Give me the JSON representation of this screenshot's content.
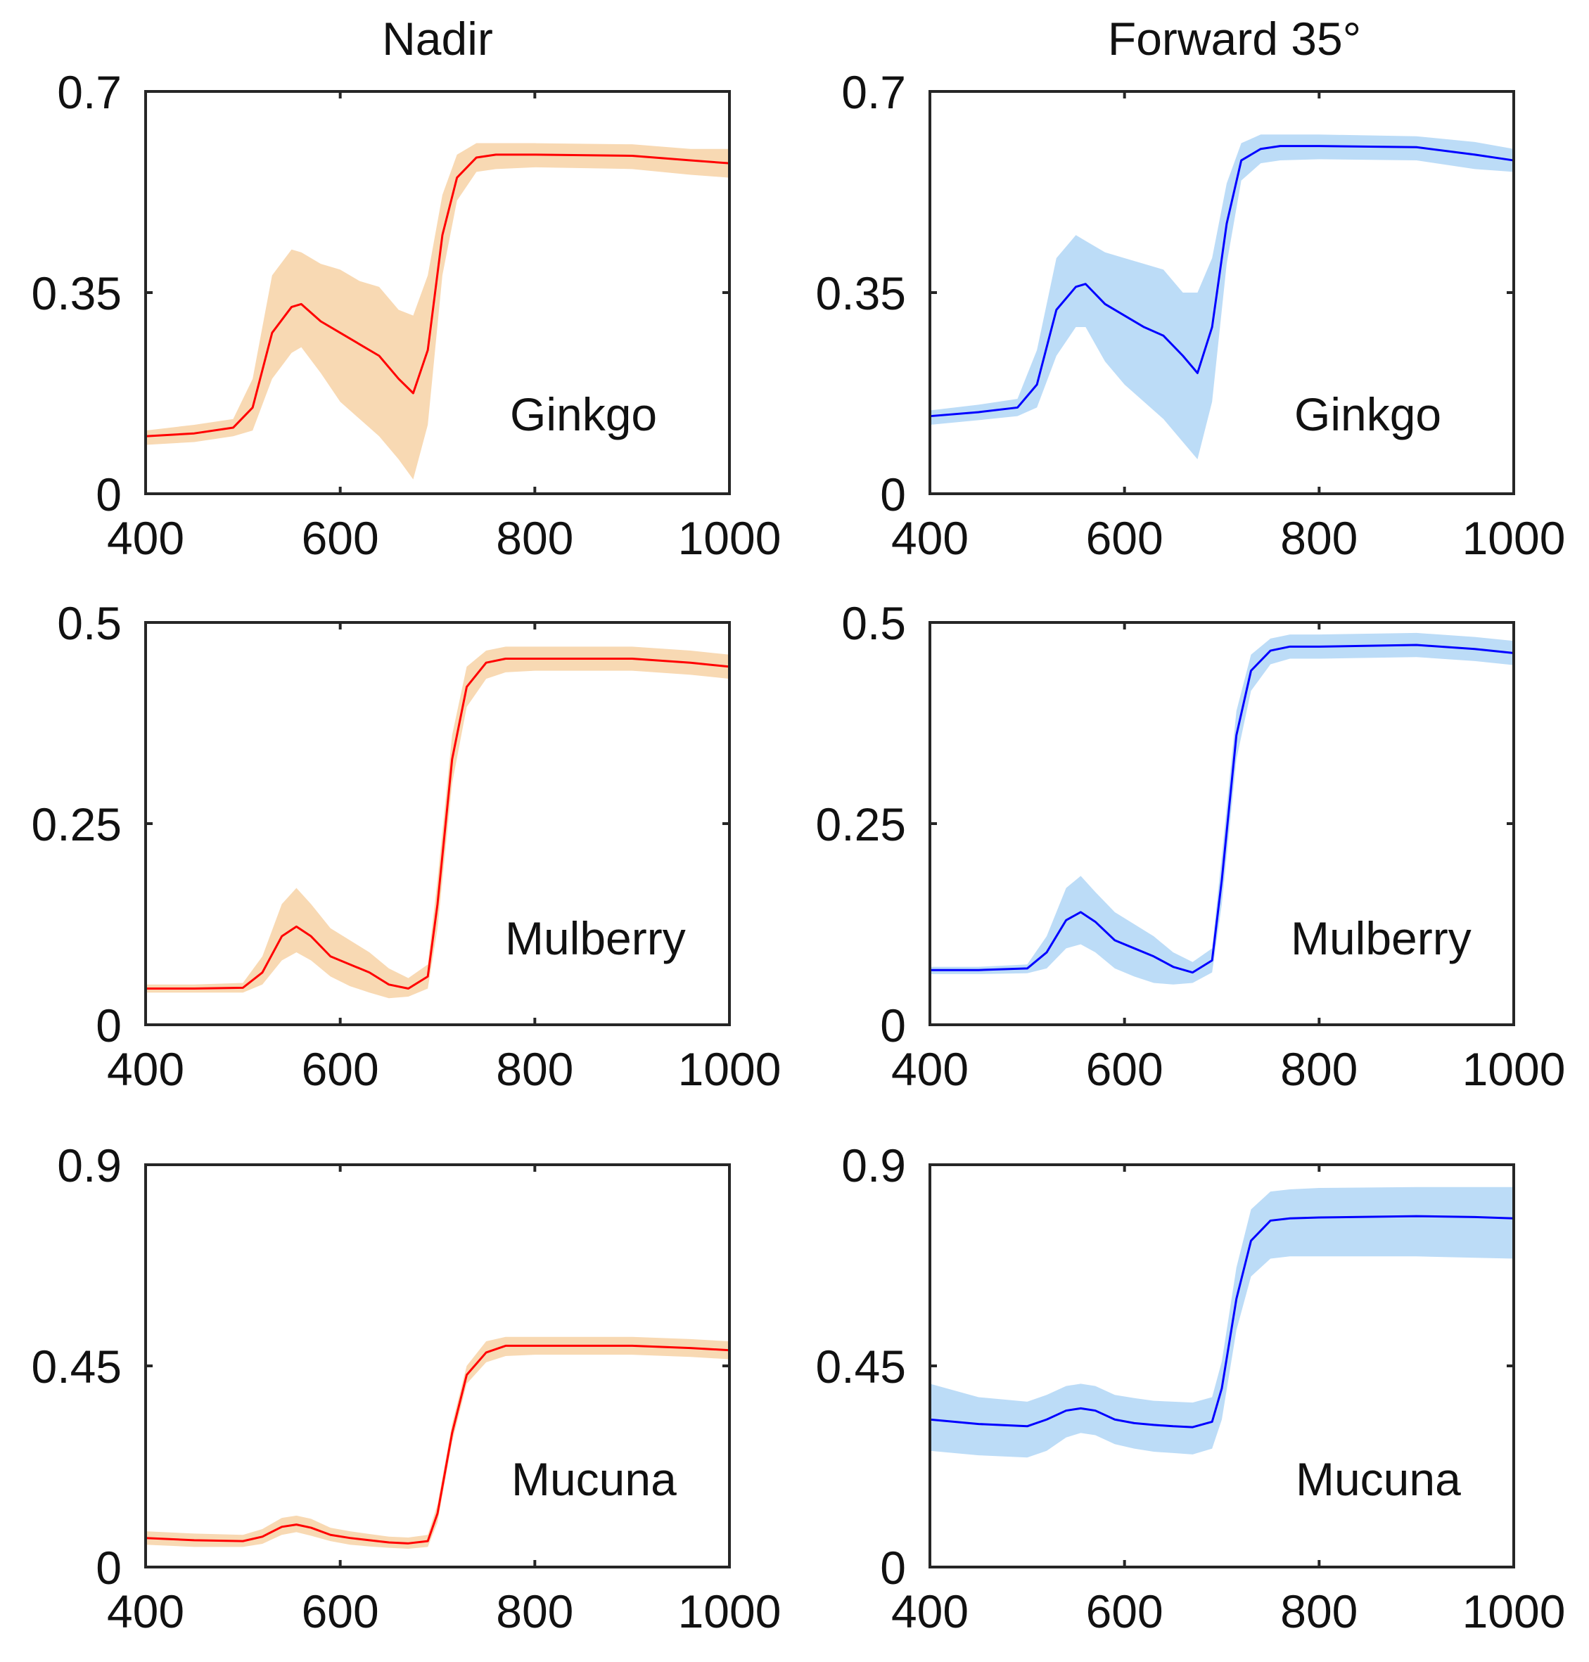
{
  "column_titles": [
    "Nadir",
    "Forward 35°"
  ],
  "colors": {
    "nadir_line": "#ff0000",
    "nadir_band": "#f8d9b3",
    "forward_line": "#0000ff",
    "forward_band": "#bcdcf7",
    "axes": "#262626"
  },
  "chart_data": [
    {
      "type": "area",
      "panel": "Nadir / Ginkgo",
      "column_title": "Nadir",
      "label": "Ginkgo",
      "xlim": [
        400,
        1000
      ],
      "ylim": [
        0,
        0.7
      ],
      "xticks": [
        "400",
        "600",
        "800",
        "1000"
      ],
      "yticks": [
        "0",
        "0.35",
        "0.7"
      ],
      "x": [
        400,
        450,
        490,
        510,
        530,
        550,
        560,
        580,
        600,
        620,
        640,
        660,
        675,
        690,
        705,
        720,
        740,
        760,
        800,
        900,
        960,
        1000
      ],
      "mean": [
        0.1,
        0.105,
        0.115,
        0.15,
        0.28,
        0.325,
        0.33,
        0.3,
        0.28,
        0.26,
        0.24,
        0.2,
        0.175,
        0.25,
        0.45,
        0.55,
        0.585,
        0.59,
        0.59,
        0.588,
        0.58,
        0.575
      ],
      "upper": [
        0.11,
        0.12,
        0.13,
        0.2,
        0.38,
        0.425,
        0.42,
        0.4,
        0.39,
        0.37,
        0.36,
        0.32,
        0.31,
        0.38,
        0.52,
        0.59,
        0.61,
        0.61,
        0.61,
        0.608,
        0.6,
        0.6
      ],
      "lower": [
        0.085,
        0.09,
        0.1,
        0.11,
        0.2,
        0.245,
        0.255,
        0.21,
        0.16,
        0.13,
        0.1,
        0.06,
        0.025,
        0.12,
        0.38,
        0.51,
        0.56,
        0.565,
        0.568,
        0.565,
        0.555,
        0.55
      ]
    },
    {
      "type": "area",
      "panel": "Forward 35° / Ginkgo",
      "column_title": "Forward 35°",
      "label": "Ginkgo",
      "xlim": [
        400,
        1000
      ],
      "ylim": [
        0,
        0.7
      ],
      "xticks": [
        "400",
        "600",
        "800",
        "1000"
      ],
      "yticks": [
        "0",
        "0.35",
        "0.7"
      ],
      "x": [
        400,
        450,
        490,
        510,
        530,
        550,
        560,
        580,
        600,
        620,
        640,
        660,
        675,
        690,
        705,
        720,
        740,
        760,
        800,
        900,
        960,
        1000
      ],
      "mean": [
        0.135,
        0.142,
        0.15,
        0.19,
        0.32,
        0.36,
        0.365,
        0.33,
        0.31,
        0.29,
        0.275,
        0.24,
        0.21,
        0.29,
        0.47,
        0.58,
        0.6,
        0.605,
        0.605,
        0.603,
        0.59,
        0.58
      ],
      "upper": [
        0.145,
        0.155,
        0.165,
        0.25,
        0.41,
        0.45,
        0.44,
        0.42,
        0.41,
        0.4,
        0.39,
        0.35,
        0.35,
        0.41,
        0.54,
        0.61,
        0.625,
        0.625,
        0.625,
        0.622,
        0.612,
        0.6
      ],
      "lower": [
        0.12,
        0.128,
        0.135,
        0.15,
        0.24,
        0.29,
        0.29,
        0.23,
        0.19,
        0.16,
        0.13,
        0.09,
        0.06,
        0.16,
        0.4,
        0.545,
        0.575,
        0.58,
        0.582,
        0.58,
        0.565,
        0.56
      ]
    },
    {
      "type": "area",
      "panel": "Nadir / Mulberry",
      "column_title": "Nadir",
      "label": "Mulberry",
      "xlim": [
        400,
        1000
      ],
      "ylim": [
        0,
        0.5
      ],
      "xticks": [
        "400",
        "600",
        "800",
        "1000"
      ],
      "yticks": [
        "0",
        "0.25",
        "0.5"
      ],
      "x": [
        400,
        450,
        500,
        520,
        540,
        555,
        570,
        590,
        610,
        630,
        650,
        670,
        690,
        700,
        715,
        730,
        750,
        770,
        800,
        900,
        960,
        1000
      ],
      "mean": [
        0.045,
        0.045,
        0.046,
        0.065,
        0.11,
        0.122,
        0.11,
        0.085,
        0.075,
        0.065,
        0.05,
        0.045,
        0.06,
        0.15,
        0.33,
        0.42,
        0.45,
        0.455,
        0.455,
        0.455,
        0.45,
        0.445
      ],
      "upper": [
        0.05,
        0.05,
        0.052,
        0.085,
        0.15,
        0.17,
        0.15,
        0.12,
        0.105,
        0.09,
        0.07,
        0.058,
        0.075,
        0.18,
        0.36,
        0.445,
        0.465,
        0.47,
        0.47,
        0.47,
        0.465,
        0.46
      ],
      "lower": [
        0.04,
        0.04,
        0.04,
        0.05,
        0.08,
        0.09,
        0.08,
        0.06,
        0.048,
        0.04,
        0.033,
        0.035,
        0.045,
        0.12,
        0.3,
        0.395,
        0.43,
        0.438,
        0.44,
        0.44,
        0.435,
        0.43
      ]
    },
    {
      "type": "area",
      "panel": "Forward 35° / Mulberry",
      "column_title": "Forward 35°",
      "label": "Mulberry",
      "xlim": [
        400,
        1000
      ],
      "ylim": [
        0,
        0.5
      ],
      "xticks": [
        "400",
        "600",
        "800",
        "1000"
      ],
      "yticks": [
        "0",
        "0.25",
        "0.5"
      ],
      "x": [
        400,
        450,
        500,
        520,
        540,
        555,
        570,
        590,
        610,
        630,
        650,
        670,
        690,
        700,
        715,
        730,
        750,
        770,
        800,
        900,
        960,
        1000
      ],
      "mean": [
        0.068,
        0.068,
        0.07,
        0.09,
        0.13,
        0.14,
        0.128,
        0.105,
        0.095,
        0.085,
        0.072,
        0.065,
        0.08,
        0.18,
        0.36,
        0.44,
        0.465,
        0.47,
        0.47,
        0.472,
        0.467,
        0.462
      ],
      "upper": [
        0.072,
        0.072,
        0.075,
        0.11,
        0.17,
        0.185,
        0.165,
        0.14,
        0.125,
        0.11,
        0.09,
        0.078,
        0.095,
        0.21,
        0.39,
        0.46,
        0.48,
        0.485,
        0.485,
        0.487,
        0.482,
        0.477
      ],
      "lower": [
        0.063,
        0.063,
        0.064,
        0.07,
        0.095,
        0.1,
        0.09,
        0.07,
        0.06,
        0.052,
        0.05,
        0.052,
        0.065,
        0.15,
        0.33,
        0.415,
        0.448,
        0.455,
        0.455,
        0.457,
        0.452,
        0.447
      ]
    },
    {
      "type": "area",
      "panel": "Nadir / Mucuna",
      "column_title": "Nadir",
      "label": "Mucuna",
      "xlim": [
        400,
        1000
      ],
      "ylim": [
        0,
        0.9
      ],
      "xticks": [
        "400",
        "600",
        "800",
        "1000"
      ],
      "yticks": [
        "0",
        "0.45",
        "0.9"
      ],
      "x": [
        400,
        450,
        500,
        520,
        540,
        555,
        570,
        590,
        610,
        630,
        650,
        670,
        690,
        700,
        715,
        730,
        750,
        770,
        800,
        900,
        960,
        1000
      ],
      "mean": [
        0.065,
        0.06,
        0.058,
        0.068,
        0.09,
        0.095,
        0.088,
        0.072,
        0.065,
        0.06,
        0.055,
        0.053,
        0.058,
        0.12,
        0.3,
        0.43,
        0.48,
        0.495,
        0.495,
        0.495,
        0.49,
        0.485
      ],
      "upper": [
        0.08,
        0.075,
        0.072,
        0.085,
        0.11,
        0.115,
        0.108,
        0.088,
        0.08,
        0.074,
        0.068,
        0.066,
        0.072,
        0.14,
        0.32,
        0.45,
        0.505,
        0.515,
        0.515,
        0.515,
        0.51,
        0.505
      ],
      "lower": [
        0.05,
        0.045,
        0.045,
        0.052,
        0.072,
        0.078,
        0.07,
        0.058,
        0.05,
        0.046,
        0.043,
        0.041,
        0.045,
        0.1,
        0.28,
        0.41,
        0.458,
        0.472,
        0.475,
        0.475,
        0.47,
        0.465
      ]
    },
    {
      "type": "area",
      "panel": "Forward 35° / Mucuna",
      "column_title": "Forward 35°",
      "label": "Mucuna",
      "xlim": [
        400,
        1000
      ],
      "ylim": [
        0,
        0.9
      ],
      "xticks": [
        "400",
        "600",
        "800",
        "1000"
      ],
      "yticks": [
        "0",
        "0.45",
        "0.9"
      ],
      "x": [
        400,
        450,
        500,
        520,
        540,
        555,
        570,
        590,
        610,
        630,
        650,
        670,
        690,
        700,
        715,
        730,
        750,
        770,
        800,
        900,
        960,
        1000
      ],
      "mean": [
        0.33,
        0.32,
        0.315,
        0.33,
        0.35,
        0.355,
        0.35,
        0.33,
        0.322,
        0.318,
        0.315,
        0.313,
        0.325,
        0.4,
        0.6,
        0.73,
        0.775,
        0.78,
        0.782,
        0.785,
        0.783,
        0.78
      ],
      "upper": [
        0.41,
        0.38,
        0.37,
        0.385,
        0.405,
        0.41,
        0.405,
        0.385,
        0.378,
        0.372,
        0.37,
        0.368,
        0.38,
        0.46,
        0.67,
        0.8,
        0.84,
        0.845,
        0.848,
        0.85,
        0.85,
        0.85
      ],
      "lower": [
        0.26,
        0.25,
        0.245,
        0.26,
        0.29,
        0.3,
        0.295,
        0.275,
        0.265,
        0.258,
        0.255,
        0.252,
        0.265,
        0.33,
        0.53,
        0.65,
        0.69,
        0.695,
        0.695,
        0.695,
        0.692,
        0.69
      ]
    }
  ]
}
